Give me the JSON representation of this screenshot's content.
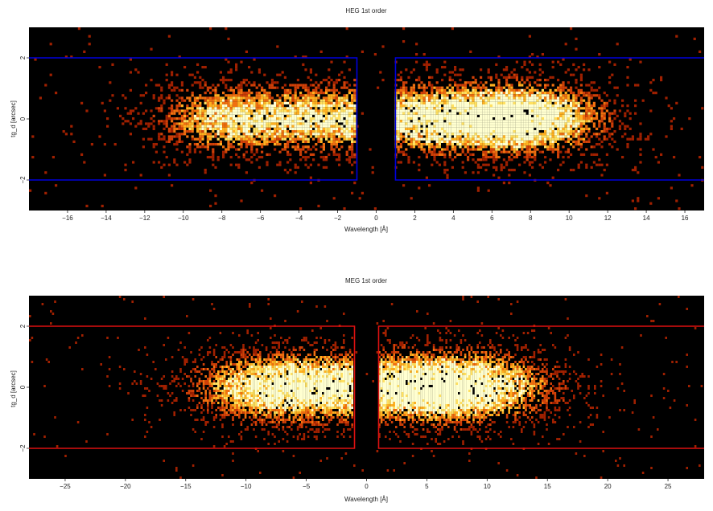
{
  "chart_data": [
    {
      "type": "heatmap",
      "title": "HEG 1st order",
      "xlabel": "Wavelength [Å]",
      "ylabel": "tg_d [arcsec]",
      "xlim": [
        -18,
        17
      ],
      "ylim": [
        -3,
        3
      ],
      "xticks": [
        -16,
        -14,
        -12,
        -10,
        -8,
        -6,
        -4,
        -2,
        0,
        2,
        4,
        6,
        8,
        10,
        12,
        14,
        16
      ],
      "yticks": [
        -2,
        0,
        2
      ],
      "colormap": "black-red-yellow-white",
      "box_color": "#0000dd",
      "regions": [
        {
          "x": [
            -18,
            -1
          ],
          "y": [
            -2,
            2
          ]
        },
        {
          "x": [
            1,
            17
          ],
          "y": [
            -2,
            2
          ]
        }
      ],
      "intensity_peaks": [
        {
          "x": -7.5,
          "y": 0,
          "relative": 1.0
        },
        {
          "x": -2.2,
          "y": 0,
          "relative": 0.9
        },
        {
          "x": 2.8,
          "y": 0,
          "relative": 1.0
        },
        {
          "x": 6.8,
          "y": 0,
          "relative": 0.9
        },
        {
          "x": 8.5,
          "y": 0,
          "relative": 0.8
        }
      ]
    },
    {
      "type": "heatmap",
      "title": "MEG 1st order",
      "xlabel": "Wavelength [Å]",
      "ylabel": "tg_d [arcsec]",
      "xlim": [
        -28,
        28
      ],
      "ylim": [
        -3,
        3
      ],
      "xticks": [
        -25,
        -20,
        -15,
        -10,
        -5,
        0,
        5,
        10,
        15,
        20,
        25
      ],
      "yticks": [
        -2,
        0,
        2
      ],
      "colormap": "black-red-yellow-white",
      "box_color": "#dd1111",
      "regions": [
        {
          "x": [
            -28,
            -1
          ],
          "y": [
            -2,
            2
          ]
        },
        {
          "x": [
            1,
            28
          ],
          "y": [
            -2,
            2
          ]
        }
      ],
      "intensity_peaks": [
        {
          "x": -8.5,
          "y": 0,
          "relative": 1.0
        },
        {
          "x": -3.5,
          "y": 0,
          "relative": 0.7
        },
        {
          "x": 2.5,
          "y": 0,
          "relative": 0.8
        },
        {
          "x": 7.5,
          "y": 0,
          "relative": 1.0
        },
        {
          "x": 11.0,
          "y": 0,
          "relative": 0.5
        }
      ]
    }
  ]
}
